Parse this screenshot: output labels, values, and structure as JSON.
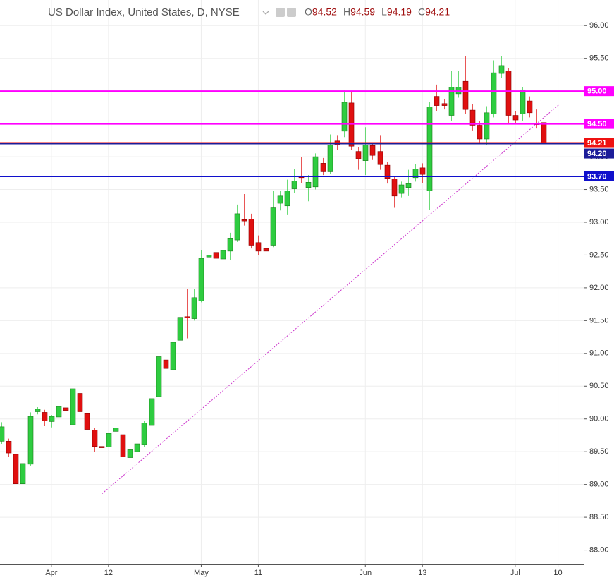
{
  "chart_data": {
    "type": "candlestick",
    "title": "US Dollar Index, United States, D, NYSE",
    "ohlc_legend": [
      {
        "key": "O",
        "value": 94.52
      },
      {
        "key": "H",
        "value": 94.59
      },
      {
        "key": "L",
        "value": 94.19
      },
      {
        "key": "C",
        "value": 94.21
      }
    ],
    "x": [
      0,
      1,
      2,
      3,
      4,
      5,
      6,
      7,
      8,
      9,
      10,
      11,
      12,
      13,
      14,
      15,
      16,
      17,
      18,
      19,
      20,
      21,
      22,
      23,
      24,
      25,
      26,
      27,
      28,
      29,
      30,
      31,
      32,
      33,
      34,
      35,
      36,
      37,
      38,
      39,
      40,
      41,
      42,
      43,
      44,
      45,
      46,
      47,
      48,
      49,
      50,
      51,
      52,
      53,
      54,
      55,
      56,
      57,
      58,
      59,
      60,
      61,
      62,
      63,
      64,
      65,
      66,
      67,
      68,
      69,
      70,
      71,
      72,
      73,
      74,
      75,
      76
    ],
    "open": [
      89.66,
      89.66,
      89.46,
      89.01,
      89.31,
      90.11,
      90.1,
      89.96,
      90.03,
      90.17,
      89.91,
      90.39,
      90.08,
      89.83,
      89.58,
      89.57,
      89.81,
      89.76,
      89.41,
      89.5,
      89.61,
      89.9,
      90.34,
      90.9,
      90.75,
      91.2,
      91.56,
      91.53,
      91.8,
      92.47,
      92.54,
      92.44,
      92.56,
      92.73,
      93.04,
      93.05,
      92.69,
      92.6,
      92.65,
      93.29,
      93.25,
      93.51,
      93.7,
      93.53,
      93.54,
      93.9,
      93.77,
      94.24,
      94.39,
      94.82,
      94.08,
      93.94,
      94.17,
      94.08,
      93.87,
      93.66,
      93.44,
      93.53,
      93.68,
      93.83,
      93.48,
      94.92,
      94.81,
      94.63,
      94.96,
      95.15,
      94.71,
      94.48,
      94.27,
      94.65,
      95.27,
      95.31,
      94.63,
      94.65,
      94.85,
      94.5,
      94.52
    ],
    "high": [
      89.95,
      89.7,
      89.5,
      89.35,
      90.1,
      90.18,
      90.14,
      90.06,
      90.24,
      90.26,
      90.58,
      90.6,
      90.13,
      89.86,
      89.72,
      89.94,
      89.94,
      89.82,
      89.58,
      89.7,
      89.97,
      90.49,
      90.98,
      90.98,
      91.27,
      91.66,
      91.98,
      91.98,
      92.57,
      92.84,
      92.73,
      92.73,
      92.84,
      93.27,
      93.43,
      93.13,
      92.8,
      92.68,
      93.48,
      93.48,
      93.65,
      93.81,
      94.0,
      93.72,
      94.05,
      93.98,
      94.34,
      94.32,
      95.01,
      95.0,
      94.15,
      94.45,
      94.2,
      94.32,
      93.92,
      93.7,
      93.62,
      93.8,
      93.89,
      93.9,
      94.83,
      95.1,
      94.88,
      95.31,
      95.31,
      95.53,
      94.8,
      94.55,
      94.77,
      95.47,
      95.53,
      95.35,
      94.7,
      95.06,
      94.92,
      94.72,
      94.59
    ],
    "low": [
      89.62,
      89.42,
      88.99,
      88.95,
      89.28,
      90.07,
      89.89,
      89.87,
      89.93,
      89.94,
      89.85,
      90.04,
      89.8,
      89.5,
      89.37,
      89.52,
      89.67,
      89.4,
      89.36,
      89.45,
      89.57,
      89.88,
      90.32,
      90.72,
      90.72,
      90.95,
      91.23,
      91.5,
      91.78,
      92.41,
      92.3,
      92.35,
      92.43,
      92.7,
      92.95,
      92.6,
      92.5,
      92.25,
      92.62,
      93.18,
      93.12,
      93.45,
      93.6,
      93.32,
      93.5,
      93.72,
      93.74,
      94.1,
      94.3,
      94.1,
      93.8,
      93.72,
      93.95,
      93.8,
      93.59,
      93.22,
      93.38,
      93.4,
      93.62,
      93.6,
      93.19,
      94.7,
      94.72,
      94.55,
      94.9,
      94.65,
      94.4,
      94.2,
      94.18,
      94.6,
      95.2,
      94.5,
      94.5,
      94.55,
      94.6,
      94.43,
      94.19
    ],
    "close": [
      89.88,
      89.48,
      89.01,
      89.32,
      90.04,
      90.15,
      89.97,
      90.04,
      90.19,
      90.13,
      90.46,
      90.11,
      89.84,
      89.58,
      89.56,
      89.78,
      89.86,
      89.42,
      89.53,
      89.62,
      89.94,
      90.31,
      90.95,
      90.77,
      91.17,
      91.55,
      91.54,
      91.85,
      92.45,
      92.5,
      92.45,
      92.57,
      92.75,
      93.13,
      93.02,
      92.65,
      92.56,
      92.56,
      93.22,
      93.4,
      93.48,
      93.63,
      93.68,
      93.61,
      94.0,
      93.77,
      94.18,
      94.18,
      94.83,
      94.16,
      93.97,
      94.18,
      94.02,
      93.88,
      93.67,
      93.4,
      93.57,
      93.59,
      93.81,
      93.73,
      94.76,
      94.78,
      94.78,
      95.06,
      95.06,
      94.72,
      94.48,
      94.27,
      94.67,
      95.28,
      95.39,
      94.63,
      94.56,
      95.02,
      94.67,
      94.49,
      94.21
    ],
    "up_color": "#2ecc40",
    "down_color": "#e01010",
    "xlim": [
      -0.2,
      81.6
    ],
    "xticks": [
      {
        "value": 7,
        "label": "Apr"
      },
      15,
      28,
      36,
      51,
      59,
      72,
      78
    ],
    "xtick_labels": [
      "Apr",
      "12",
      "May",
      "11",
      "Jun",
      "13",
      "Jul",
      "10"
    ],
    "ylim": [
      87.78,
      96.39
    ],
    "yticks": [
      {
        "value": 88,
        "label": "88.00"
      },
      {
        "value": 88.5,
        "label": "88.50"
      },
      {
        "value": 89,
        "label": "89.00"
      },
      {
        "value": 89.5,
        "label": "89.50"
      },
      {
        "value": 90,
        "label": "90.00"
      },
      {
        "value": 90.5,
        "label": "90.50"
      },
      {
        "value": 91,
        "label": "91.00"
      },
      {
        "value": 91.5,
        "label": "91.50"
      },
      {
        "value": 92,
        "label": "92.00"
      },
      {
        "value": 92.5,
        "label": "92.50"
      },
      {
        "value": 93,
        "label": "93.00"
      },
      {
        "value": 93.5,
        "label": "93.50"
      },
      {
        "value": 94,
        "label": "94.00"
      },
      {
        "value": 94.5,
        "label": "94.50"
      },
      {
        "value": 95,
        "label": "95.00"
      },
      {
        "value": 95.5,
        "label": "95.50"
      },
      {
        "value": 96,
        "label": "96.00"
      }
    ],
    "grid": true,
    "levels": [
      {
        "value": 95.0,
        "label": "95.00",
        "color": "#ff00ff"
      },
      {
        "value": 94.5,
        "label": "94.50",
        "color": "#ff00ff"
      },
      {
        "value": 94.21,
        "label": "94.21",
        "color": "#ee1111"
      },
      {
        "value": 94.2,
        "label": "94.20",
        "color": "#1c1c99"
      },
      {
        "value": 93.7,
        "label": "93.70",
        "color": "#1010cc"
      }
    ],
    "trendline": {
      "x": [
        14.1,
        78.2
      ],
      "y": [
        88.86,
        94.8
      ],
      "color": "#cc33cc"
    }
  }
}
